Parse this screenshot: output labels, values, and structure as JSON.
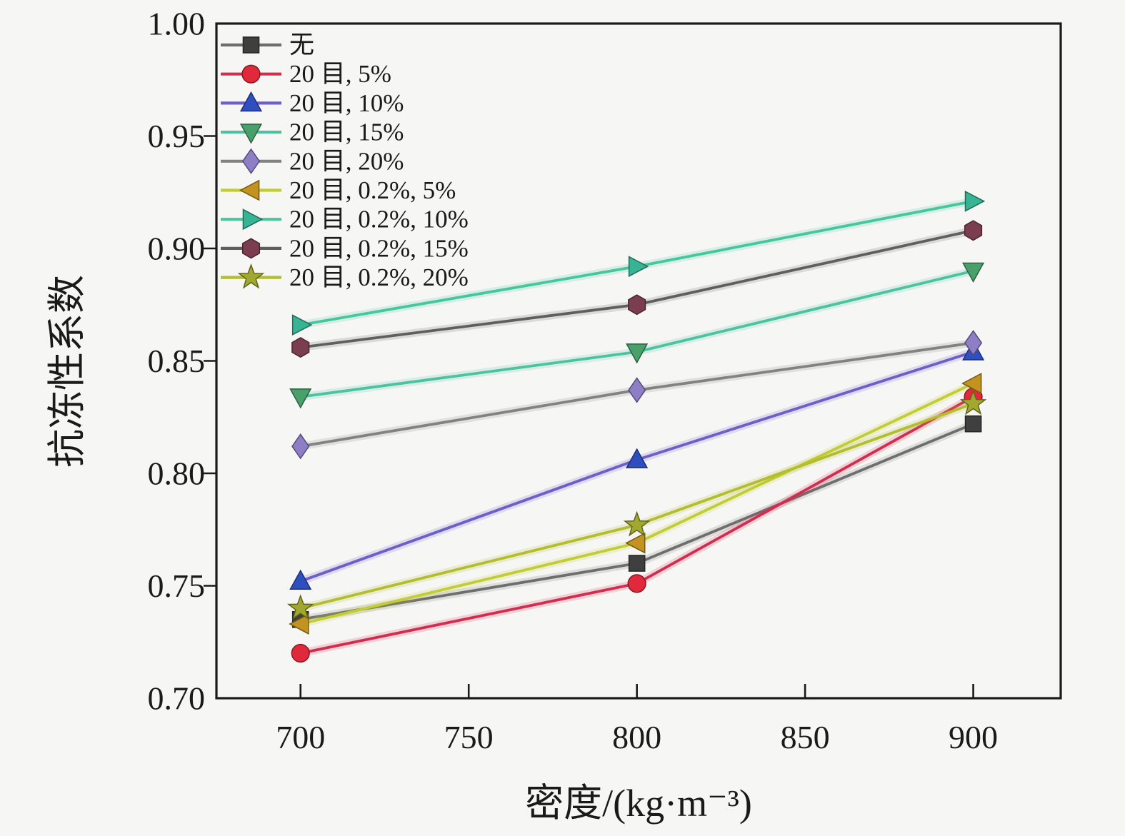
{
  "figure": {
    "background": "#f6f6f4",
    "frame_color": "#1a1a1a",
    "text_color": "#1a1a1a"
  },
  "chart_data": {
    "type": "line",
    "title": "",
    "xlabel": "密度/(kg·m⁻³)",
    "ylabel": "抗冻性系数",
    "x": [
      700,
      800,
      900
    ],
    "xlim": [
      675,
      926
    ],
    "ylim": [
      0.7,
      1.0
    ],
    "xticks": [
      "700",
      "750",
      "800",
      "850",
      "900"
    ],
    "yticks": [
      "0.70",
      "0.75",
      "0.80",
      "0.85",
      "0.90",
      "0.95",
      "1.00"
    ],
    "grid": false,
    "legend_position": "top-left-inside",
    "series": [
      {
        "name": "无",
        "marker": "square",
        "marker_color": "#3f3f3f",
        "line_color": "#6e6e6e",
        "values": [
          0.735,
          0.76,
          0.822
        ]
      },
      {
        "name": "20 目, 5%",
        "marker": "circle",
        "marker_color": "#e02a3c",
        "line_color": "#d22c50",
        "values": [
          0.72,
          0.751,
          0.834
        ]
      },
      {
        "name": "20 目, 10%",
        "marker": "triangle-up",
        "marker_color": "#2f4fc0",
        "line_color": "#6c5fc8",
        "values": [
          0.752,
          0.806,
          0.854
        ]
      },
      {
        "name": "20 目, 15%",
        "marker": "triangle-down",
        "marker_color": "#49a06b",
        "line_color": "#4cc3a0",
        "values": [
          0.834,
          0.854,
          0.89
        ]
      },
      {
        "name": "20 目, 20%",
        "marker": "diamond",
        "marker_color": "#8e7ec5",
        "line_color": "#828282",
        "values": [
          0.812,
          0.837,
          0.858
        ]
      },
      {
        "name": "20 目, 0.2%, 5%",
        "marker": "triangle-left",
        "marker_color": "#c2931f",
        "line_color": "#c2cc33",
        "values": [
          0.733,
          0.769,
          0.84
        ]
      },
      {
        "name": "20 目, 0.2%, 10%",
        "marker": "triangle-right",
        "marker_color": "#36b493",
        "line_color": "#45c79e",
        "values": [
          0.866,
          0.892,
          0.921
        ]
      },
      {
        "name": "20 目, 0.2%, 15%",
        "marker": "hexagon",
        "marker_color": "#7b3e50",
        "line_color": "#5f5f5f",
        "values": [
          0.856,
          0.875,
          0.908
        ]
      },
      {
        "name": "20 目, 0.2%, 20%",
        "marker": "star",
        "marker_color": "#a2a82e",
        "line_color": "#b4bd2b",
        "values": [
          0.74,
          0.777,
          0.831
        ]
      }
    ]
  }
}
